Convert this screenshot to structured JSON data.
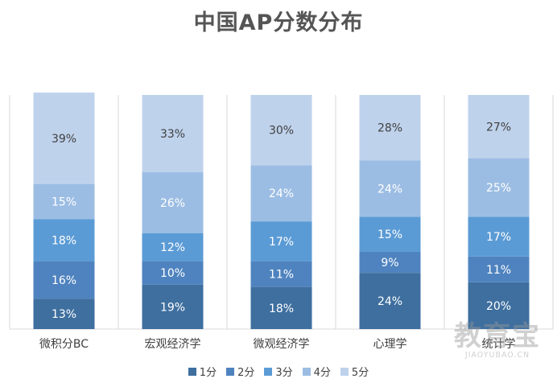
{
  "chart_data": {
    "type": "bar",
    "stacked": true,
    "title": "中国AP分数分布",
    "categories": [
      "微积分BC",
      "宏观经济学",
      "微观经济学",
      "心理学",
      "统计学"
    ],
    "series": [
      {
        "name": "1分",
        "color": "#3e6f9f",
        "values": [
          13,
          19,
          18,
          24,
          20
        ],
        "labels": [
          "13%",
          "19%",
          "18%",
          "24%",
          "20%"
        ]
      },
      {
        "name": "2分",
        "color": "#4f83bf",
        "values": [
          16,
          10,
          11,
          9,
          11
        ],
        "labels": [
          "16%",
          "10%",
          "11%",
          "9%",
          "11%"
        ]
      },
      {
        "name": "3分",
        "color": "#5b9bd5",
        "values": [
          18,
          12,
          17,
          15,
          17
        ],
        "labels": [
          "18%",
          "12%",
          "17%",
          "15%",
          "17%"
        ]
      },
      {
        "name": "4分",
        "color": "#9cbde3",
        "values": [
          15,
          26,
          24,
          24,
          25
        ],
        "labels": [
          "15%",
          "26%",
          "24%",
          "24%",
          "25%"
        ]
      },
      {
        "name": "5分",
        "color": "#bfd2ec",
        "values": [
          39,
          33,
          30,
          28,
          27
        ],
        "labels": [
          "39%",
          "33%",
          "30%",
          "28%",
          "27%"
        ]
      }
    ],
    "ylim": [
      0,
      100
    ],
    "legend_position": "bottom",
    "label_colors": {
      "dark_segments": "#ffffff",
      "light_segments": "#404040"
    }
  },
  "watermark": {
    "main": "教育宝",
    "sub": "JIAOYUBAO.CN"
  }
}
